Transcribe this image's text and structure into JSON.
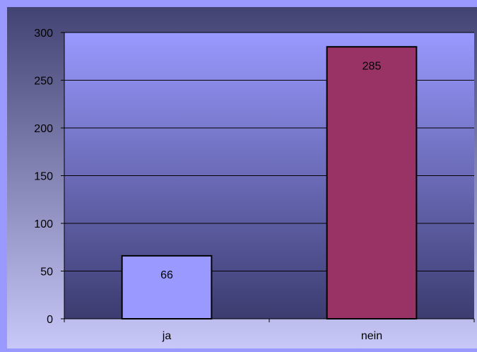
{
  "chart_data": {
    "type": "bar",
    "categories": [
      "ja",
      "nein"
    ],
    "values": [
      66,
      285
    ],
    "data_labels": [
      "66",
      "285"
    ],
    "ylim": [
      0,
      300
    ],
    "yticks": [
      0,
      50,
      100,
      150,
      200,
      250,
      300
    ],
    "ytick_labels": [
      "0",
      "50",
      "100",
      "150",
      "200",
      "250",
      "300"
    ],
    "grid": true,
    "legend": "none",
    "colors": {
      "page_background": "#9999ff",
      "frame_top": "#434373",
      "frame_bottom": "#c8c8f8",
      "plot_top": "#9999ff",
      "plot_bottom": "#3c3c70",
      "bar_series": [
        "#9999ff",
        "#993366"
      ],
      "gridline": "#000000"
    }
  }
}
